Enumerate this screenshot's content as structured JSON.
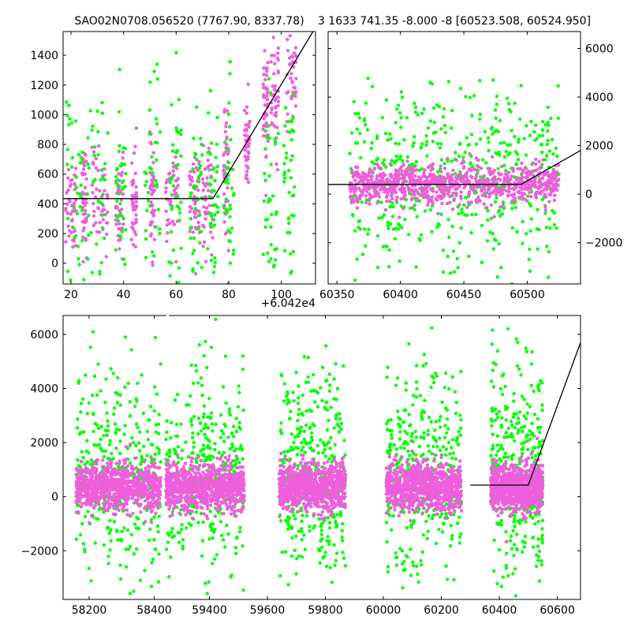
{
  "colors": {
    "green": "#00ff00",
    "pink": "#ee5fdc",
    "model_line": "#000000"
  },
  "chart_data": [
    {
      "type": "scatter",
      "title": "SAO02N0708.056520 (7767.90, 8337.78)",
      "x_offset_label": "+6.042e4",
      "xlim": [
        17,
        113
      ],
      "ylim": [
        -140,
        1560
      ],
      "x_ticks": [
        20,
        40,
        60,
        80,
        100
      ],
      "y_ticks": [
        0,
        200,
        400,
        600,
        800,
        1000,
        1200,
        1400
      ],
      "x_tick_labels": [
        "20",
        "40",
        "60",
        "80",
        "100"
      ],
      "y_tick_labels": [
        "0",
        "200",
        "400",
        "600",
        "800",
        "1000",
        "1200",
        "1400"
      ],
      "y_axis_side": "left",
      "series": [
        {
          "color": "pink",
          "baseline": 420,
          "ramp": [
            74,
            112,
            420,
            1560
          ],
          "x_clusters": [
            [
              18,
              22
            ],
            [
              24,
              26
            ],
            [
              28,
              34
            ],
            [
              37,
              40
            ],
            [
              43,
              45
            ],
            [
              50,
              52
            ],
            [
              56,
              61
            ],
            [
              65,
              69
            ],
            [
              70,
              74
            ],
            [
              78,
              80
            ],
            [
              86,
              88
            ],
            [
              93,
              95
            ],
            [
              96,
              99
            ],
            [
              102,
              106
            ]
          ]
        },
        {
          "color": "green",
          "baseline": 450,
          "x_clusters": [
            [
              18,
              25
            ],
            [
              26,
              34
            ],
            [
              37,
              41
            ],
            [
              48,
              54
            ],
            [
              57,
              62
            ],
            [
              65,
              70
            ],
            [
              72,
              76
            ],
            [
              78,
              82
            ],
            [
              93,
              99
            ],
            [
              101,
              105
            ]
          ]
        }
      ],
      "model_line": [
        [
          17,
          435
        ],
        [
          74,
          435
        ],
        [
          112,
          1560
        ]
      ]
    },
    {
      "type": "scatter",
      "title": "3 1633 741.35 -8.000 -8 [60523.508, 60524.950]",
      "xlim": [
        60343,
        60542
      ],
      "ylim": [
        -3700,
        6700
      ],
      "x_ticks": [
        60350,
        60400,
        60450,
        60500
      ],
      "y_ticks": [
        -2000,
        0,
        2000,
        4000,
        6000
      ],
      "x_tick_labels": [
        "60350",
        "60400",
        "60450",
        "60500"
      ],
      "y_tick_labels": [
        "−2000",
        "0",
        "2000",
        "4000",
        "6000"
      ],
      "y_axis_side": "right",
      "series": [
        {
          "color": "green",
          "x_range": [
            60360,
            60525
          ],
          "center": 600,
          "spread": 1800
        },
        {
          "color": "pink",
          "x_range": [
            60360,
            60525
          ],
          "center": 400,
          "spread": 400
        }
      ],
      "model_line": [
        [
          60343,
          400
        ],
        [
          60495,
          400
        ],
        [
          60542,
          1800
        ]
      ]
    },
    {
      "type": "scatter",
      "xlim": [
        58120,
        60680
      ],
      "ylim": [
        -3800,
        6700
      ],
      "x_ticks": [
        58200,
        58400,
        59400,
        59600,
        59800,
        60000,
        60200,
        60400,
        60600
      ],
      "y_ticks": [
        -2000,
        0,
        2000,
        4000,
        6000
      ],
      "x_tick_labels": [
        "58200",
        "58400",
        "59400",
        "59600",
        "59800",
        "60000",
        "60200",
        "60400",
        "60600"
      ],
      "y_tick_labels": [
        "−2000",
        "0",
        "2000",
        "4000",
        "6000"
      ],
      "y_axis_side": "left",
      "seasons": [
        [
          58160,
          58420
        ],
        [
          59250,
          59520
        ],
        [
          59640,
          59870
        ],
        [
          60010,
          60270
        ],
        [
          60370,
          60550
        ]
      ],
      "model_line": [
        [
          60300,
          430
        ],
        [
          60500,
          430
        ],
        [
          60680,
          5700
        ]
      ]
    }
  ]
}
